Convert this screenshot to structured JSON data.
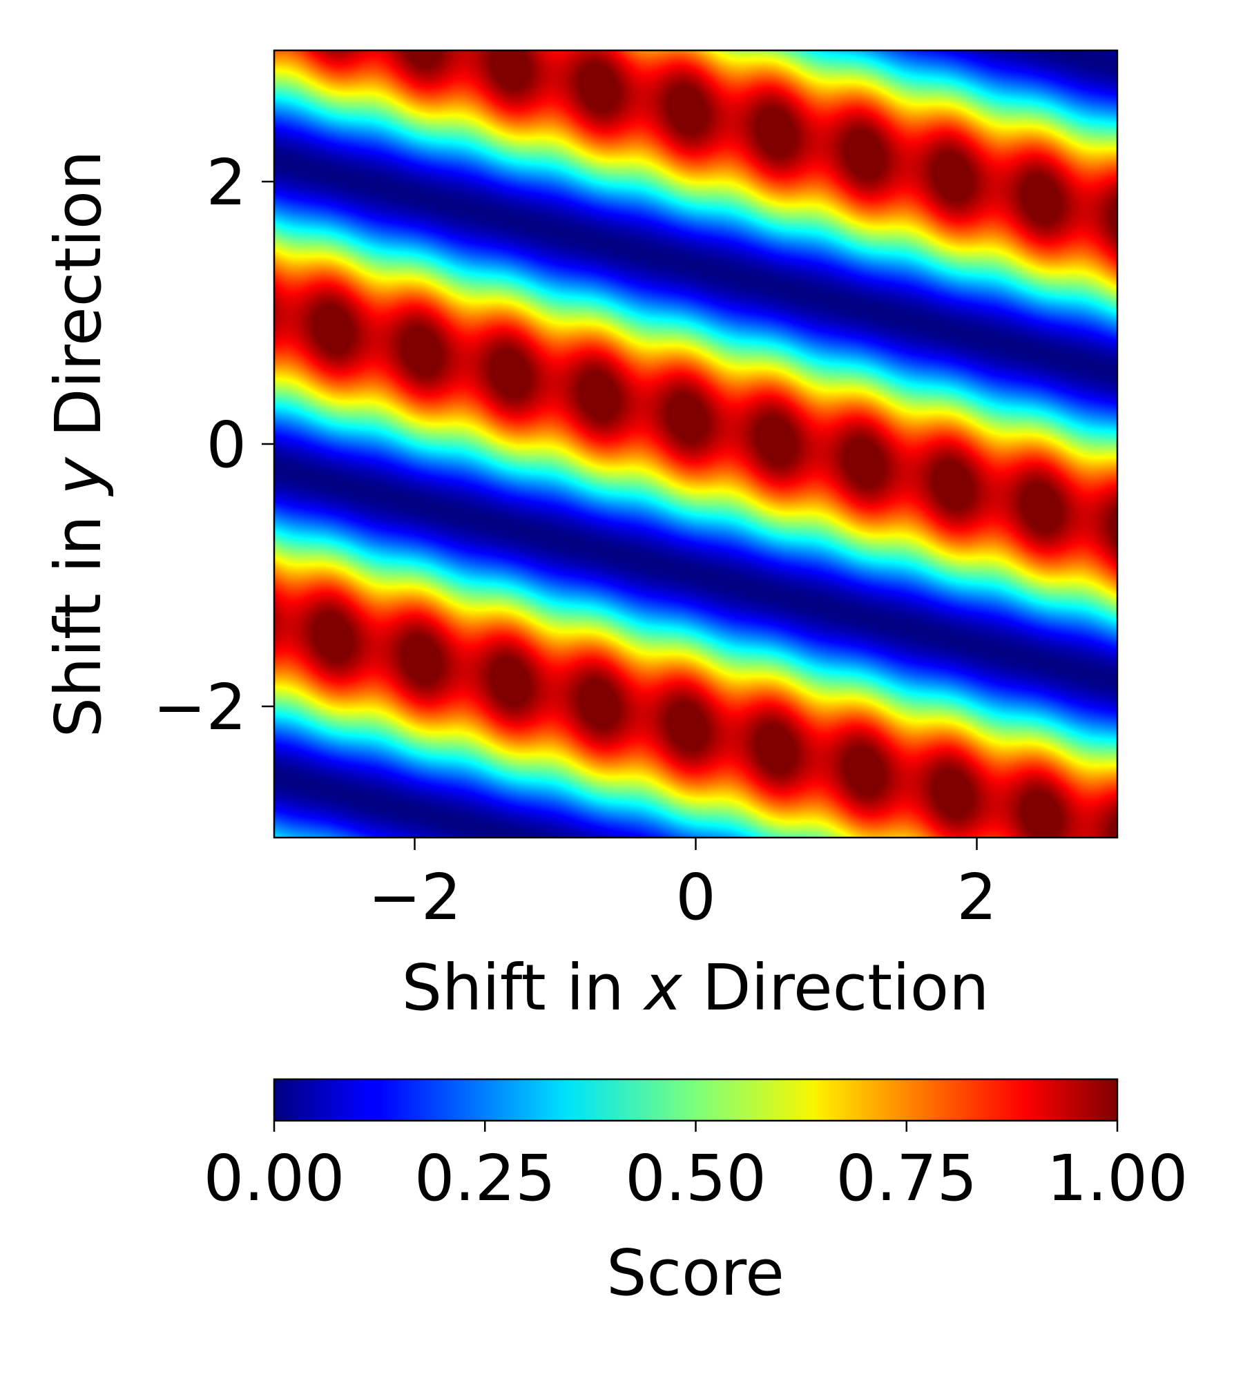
{
  "chart_data": {
    "type": "heatmap",
    "title": "",
    "xlabel": {
      "prefix": "Shift in ",
      "var": "x",
      "suffix": " Direction"
    },
    "ylabel": {
      "prefix": "Shift in ",
      "var": "y",
      "suffix": " Direction"
    },
    "xlim": [
      -3.0,
      3.0
    ],
    "ylim": [
      -3.0,
      3.0
    ],
    "x_ticks": [
      -2,
      0,
      2
    ],
    "y_ticks": [
      -2,
      0,
      2
    ],
    "x_tick_labels": [
      "−2",
      "0",
      "2"
    ],
    "y_tick_labels": [
      "−2",
      "0",
      "2"
    ],
    "colormap": "jet",
    "colorbar": {
      "label": "Score",
      "orientation": "horizontal",
      "placement": "bottom",
      "range": [
        0.0,
        1.0
      ],
      "ticks": [
        0.0,
        0.25,
        0.5,
        0.75,
        1.0
      ],
      "tick_labels": [
        "0.00",
        "0.25",
        "0.50",
        "0.75",
        "1.00"
      ]
    },
    "pattern": {
      "description": "diagonal periodic stripes descending to the right",
      "stripe_slope": -0.27,
      "stripe_period_y": 2.35,
      "max_score_line_intercept_y": 0.18
    },
    "grid": false
  }
}
